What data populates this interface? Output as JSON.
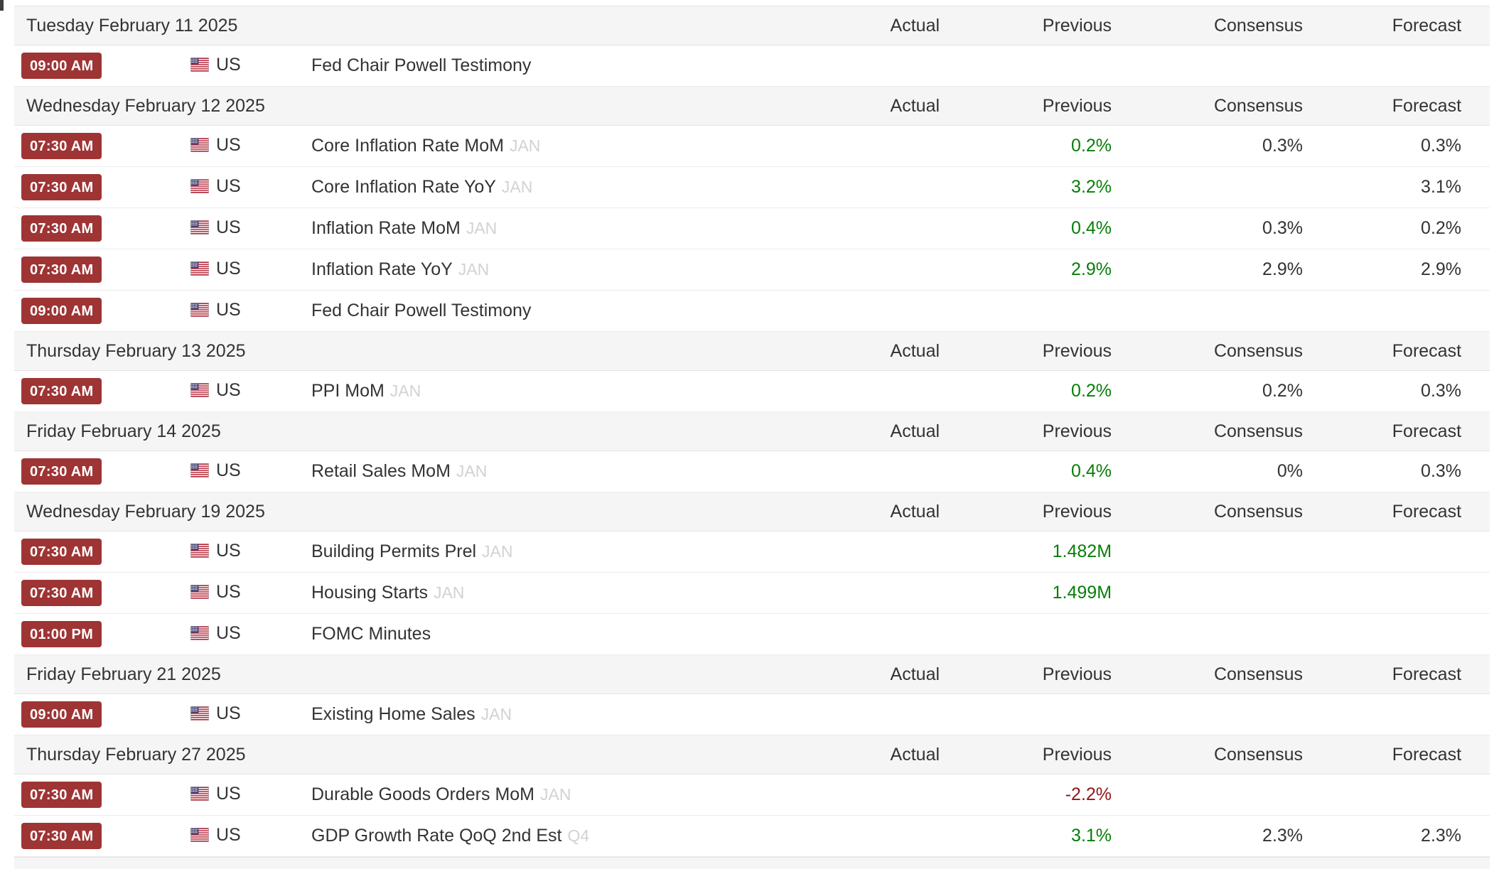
{
  "columns": {
    "actual": "Actual",
    "previous": "Previous",
    "consensus": "Consensus",
    "forecast": "Forecast"
  },
  "country": {
    "code": "US",
    "flag": "us-flag"
  },
  "colors": {
    "time_badge_bg": "#9e3434",
    "time_badge_text": "#ffffff",
    "positive_value": "#067e06",
    "negative_value": "#941616",
    "date_band_bg": "#f5f5f5",
    "text_primary": "#333333",
    "period_tag": "#d2d2d2"
  },
  "sections": [
    {
      "date": "Tuesday February 11 2025",
      "events": [
        {
          "time": "09:00 AM",
          "name": "Fed Chair Powell Testimony",
          "period": "",
          "actual": "",
          "previous": "",
          "previous_class": "",
          "consensus": "",
          "forecast": ""
        }
      ]
    },
    {
      "date": "Wednesday February 12 2025",
      "events": [
        {
          "time": "07:30 AM",
          "name": "Core Inflation Rate MoM",
          "period": "JAN",
          "actual": "",
          "previous": "0.2%",
          "previous_class": "pos",
          "consensus": "0.3%",
          "forecast": "0.3%"
        },
        {
          "time": "07:30 AM",
          "name": "Core Inflation Rate YoY",
          "period": "JAN",
          "actual": "",
          "previous": "3.2%",
          "previous_class": "pos",
          "consensus": "",
          "forecast": "3.1%"
        },
        {
          "time": "07:30 AM",
          "name": "Inflation Rate MoM",
          "period": "JAN",
          "actual": "",
          "previous": "0.4%",
          "previous_class": "pos",
          "consensus": "0.3%",
          "forecast": "0.2%"
        },
        {
          "time": "07:30 AM",
          "name": "Inflation Rate YoY",
          "period": "JAN",
          "actual": "",
          "previous": "2.9%",
          "previous_class": "pos",
          "consensus": "2.9%",
          "forecast": "2.9%"
        },
        {
          "time": "09:00 AM",
          "name": "Fed Chair Powell Testimony",
          "period": "",
          "actual": "",
          "previous": "",
          "previous_class": "",
          "consensus": "",
          "forecast": ""
        }
      ]
    },
    {
      "date": "Thursday February 13 2025",
      "events": [
        {
          "time": "07:30 AM",
          "name": "PPI MoM",
          "period": "JAN",
          "actual": "",
          "previous": "0.2%",
          "previous_class": "pos",
          "consensus": "0.2%",
          "forecast": "0.3%"
        }
      ]
    },
    {
      "date": "Friday February 14 2025",
      "events": [
        {
          "time": "07:30 AM",
          "name": "Retail Sales MoM",
          "period": "JAN",
          "actual": "",
          "previous": "0.4%",
          "previous_class": "pos",
          "consensus": "0%",
          "forecast": "0.3%"
        }
      ]
    },
    {
      "date": "Wednesday February 19 2025",
      "events": [
        {
          "time": "07:30 AM",
          "name": "Building Permits Prel",
          "period": "JAN",
          "actual": "",
          "previous": "1.482M",
          "previous_class": "pos",
          "consensus": "",
          "forecast": ""
        },
        {
          "time": "07:30 AM",
          "name": "Housing Starts",
          "period": "JAN",
          "actual": "",
          "previous": "1.499M",
          "previous_class": "pos",
          "consensus": "",
          "forecast": ""
        },
        {
          "time": "01:00 PM",
          "name": "FOMC Minutes",
          "period": "",
          "actual": "",
          "previous": "",
          "previous_class": "",
          "consensus": "",
          "forecast": ""
        }
      ]
    },
    {
      "date": "Friday February 21 2025",
      "events": [
        {
          "time": "09:00 AM",
          "name": "Existing Home Sales",
          "period": "JAN",
          "actual": "",
          "previous": "",
          "previous_class": "",
          "consensus": "",
          "forecast": ""
        }
      ]
    },
    {
      "date": "Thursday February 27 2025",
      "events": [
        {
          "time": "07:30 AM",
          "name": "Durable Goods Orders MoM",
          "period": "JAN",
          "actual": "",
          "previous": "-2.2%",
          "previous_class": "neg",
          "consensus": "",
          "forecast": ""
        },
        {
          "time": "07:30 AM",
          "name": "GDP Growth Rate QoQ 2nd Est",
          "period": "Q4",
          "actual": "",
          "previous": "3.1%",
          "previous_class": "pos",
          "consensus": "2.3%",
          "forecast": "2.3%"
        }
      ]
    }
  ]
}
